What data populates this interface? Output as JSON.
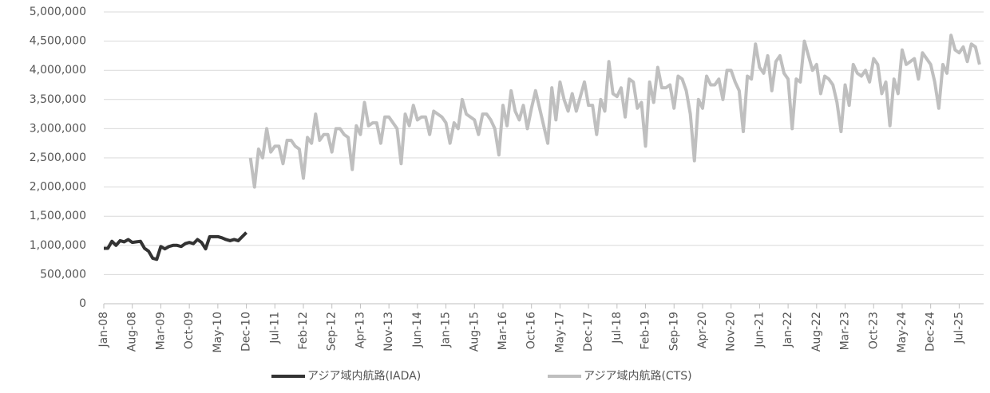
{
  "chart_data": {
    "type": "line",
    "categories": [
      "Jan-08",
      null,
      null,
      null,
      null,
      null,
      null,
      "Aug-08",
      null,
      null,
      null,
      null,
      null,
      null,
      "Mar-09",
      null,
      null,
      null,
      null,
      null,
      null,
      "Oct-09",
      null,
      null,
      null,
      null,
      null,
      null,
      "May-10",
      null,
      null,
      null,
      null,
      null,
      null,
      "Dec-10",
      null,
      null,
      null,
      null,
      null,
      null,
      "Jul-11",
      null,
      null,
      null,
      null,
      null,
      null,
      "Feb-12",
      null,
      null,
      null,
      null,
      null,
      null,
      "Sep-12",
      null,
      null,
      null,
      null,
      null,
      null,
      "Apr-13",
      null,
      null,
      null,
      null,
      null,
      null,
      "Nov-13",
      null,
      null,
      null,
      null,
      null,
      null,
      "Jun-14",
      null,
      null,
      null,
      null,
      null,
      null,
      "Jan-15",
      null,
      null,
      null,
      null,
      null,
      null,
      "Aug-15",
      null,
      null,
      null,
      null,
      null,
      null,
      "Mar-16",
      null,
      null,
      null,
      null,
      null,
      null,
      "Oct-16",
      null,
      null,
      null,
      null,
      null,
      null,
      "May-17",
      null,
      null,
      null,
      null,
      null,
      null,
      "Dec-17",
      null,
      null,
      null,
      null,
      null,
      null,
      "Jul-18",
      null,
      null,
      null,
      null,
      null,
      null,
      "Feb-19",
      null,
      null,
      null,
      null,
      null,
      null,
      "Sep-19",
      null,
      null,
      null,
      null,
      null,
      null,
      "Apr-20",
      null,
      null,
      null,
      null,
      null,
      null,
      "Nov-20",
      null,
      null,
      null,
      null,
      null,
      null,
      "Jun-21",
      null,
      null,
      null,
      null,
      null,
      null,
      "Jan-22",
      null,
      null,
      null,
      null,
      null,
      null,
      "Aug-22",
      null,
      null,
      null,
      null,
      null,
      null,
      "Mar-23",
      null,
      null,
      null,
      null,
      null,
      null,
      "Oct-23",
      null,
      null,
      null,
      null,
      null,
      null,
      "May-24",
      null,
      null,
      null,
      null,
      null,
      null,
      "Dec-24",
      null,
      null,
      null,
      null,
      null,
      null,
      "Jul-25",
      null,
      null,
      null,
      null,
      null
    ],
    "series": [
      {
        "name": "アジア域内航路(IADA)",
        "color": "#333333",
        "values": [
          950000,
          950000,
          1070000,
          1000000,
          1080000,
          1060000,
          1100000,
          1050000,
          1060000,
          1070000,
          950000,
          900000,
          780000,
          760000,
          980000,
          940000,
          980000,
          1000000,
          1000000,
          980000,
          1030000,
          1050000,
          1030000,
          1100000,
          1050000,
          940000,
          1150000,
          1150000,
          1150000,
          1130000,
          1100000,
          1080000,
          1100000,
          1080000,
          1150000,
          1220000,
          null,
          null,
          null,
          null,
          null,
          null,
          null,
          null,
          null,
          null,
          null,
          null,
          null,
          null,
          null,
          null,
          null,
          null,
          null,
          null,
          null,
          null,
          null,
          null,
          null,
          null,
          null,
          null,
          null,
          null,
          null,
          null,
          null,
          null,
          null,
          null,
          null,
          null,
          null,
          null,
          null,
          null,
          null,
          null,
          null,
          null,
          null,
          null,
          null,
          null,
          null,
          null,
          null,
          null,
          null,
          null,
          null,
          null,
          null,
          null,
          null,
          null,
          null,
          null,
          null,
          null,
          null,
          null,
          null,
          null,
          null,
          null,
          null,
          null,
          null,
          null,
          null,
          null,
          null,
          null,
          null,
          null,
          null,
          null,
          null,
          null,
          null,
          null,
          null,
          null,
          null,
          null,
          null,
          null,
          null,
          null,
          null,
          null,
          null,
          null,
          null,
          null,
          null,
          null,
          null,
          null,
          null,
          null,
          null,
          null,
          null,
          null,
          null,
          null,
          null,
          null,
          null,
          null,
          null,
          null,
          null,
          null,
          null,
          null,
          null,
          null,
          null,
          null,
          null,
          null,
          null,
          null,
          null,
          null,
          null,
          null,
          null,
          null,
          null,
          null,
          null,
          null,
          null,
          null,
          null,
          null,
          null,
          null,
          null,
          null,
          null,
          null,
          null,
          null,
          null,
          null,
          null,
          null,
          null,
          null,
          null,
          null,
          null,
          null,
          null,
          null,
          null,
          null,
          null,
          null,
          null,
          null,
          null,
          null,
          null,
          null,
          null,
          null,
          null,
          null
        ]
      },
      {
        "name": "アジア域内航路(CTS)",
        "color": "#bfbfbf",
        "values": [
          null,
          null,
          null,
          null,
          null,
          null,
          null,
          null,
          null,
          null,
          null,
          null,
          null,
          null,
          null,
          null,
          null,
          null,
          null,
          null,
          null,
          null,
          null,
          null,
          null,
          null,
          null,
          null,
          null,
          null,
          null,
          null,
          null,
          null,
          null,
          null,
          2500000,
          2000000,
          2650000,
          2500000,
          3000000,
          2600000,
          2700000,
          2700000,
          2400000,
          2800000,
          2800000,
          2700000,
          2650000,
          2150000,
          2850000,
          2750000,
          3250000,
          2800000,
          2900000,
          2900000,
          2600000,
          3000000,
          3000000,
          2900000,
          2850000,
          2300000,
          3050000,
          2900000,
          3450000,
          3050000,
          3100000,
          3100000,
          2750000,
          3200000,
          3200000,
          3100000,
          3000000,
          2400000,
          3250000,
          3050000,
          3400000,
          3150000,
          3200000,
          3200000,
          2900000,
          3300000,
          3250000,
          3200000,
          3100000,
          2750000,
          3100000,
          3000000,
          3500000,
          3250000,
          3200000,
          3150000,
          2900000,
          3250000,
          3250000,
          3150000,
          3000000,
          2550000,
          3400000,
          3050000,
          3650000,
          3300000,
          3150000,
          3400000,
          3000000,
          3350000,
          3650000,
          3350000,
          3050000,
          2750000,
          3700000,
          3150000,
          3800000,
          3500000,
          3300000,
          3600000,
          3300000,
          3550000,
          3800000,
          3400000,
          3400000,
          2900000,
          3500000,
          3300000,
          4150000,
          3600000,
          3550000,
          3700000,
          3200000,
          3850000,
          3800000,
          3350000,
          3450000,
          2700000,
          3800000,
          3450000,
          4050000,
          3700000,
          3700000,
          3750000,
          3350000,
          3900000,
          3850000,
          3650000,
          3250000,
          2450000,
          3500000,
          3350000,
          3900000,
          3750000,
          3750000,
          3850000,
          3500000,
          4000000,
          4000000,
          3800000,
          3650000,
          2950000,
          3900000,
          3850000,
          4450000,
          4050000,
          3950000,
          4250000,
          3650000,
          4150000,
          4250000,
          3950000,
          3850000,
          3000000,
          3850000,
          3800000,
          4500000,
          4250000,
          4000000,
          4100000,
          3600000,
          3900000,
          3850000,
          3750000,
          3450000,
          2950000,
          3750000,
          3400000,
          4100000,
          3950000,
          3900000,
          4000000,
          3800000,
          4200000,
          4100000,
          3600000,
          3800000,
          3050000,
          3850000,
          3600000,
          4350000,
          4100000,
          4150000,
          4200000,
          3850000,
          4300000,
          4200000,
          4100000,
          3800000,
          3350000,
          4100000,
          3950000,
          4600000,
          4350000,
          4300000,
          4400000,
          4150000,
          4450000,
          4400000,
          4100000
        ]
      }
    ],
    "ylim": [
      0,
      5000000
    ],
    "yticks": [
      0,
      {
        "value": 500000,
        "label": "500,000"
      },
      {
        "value": 1000000,
        "label": "1,000,000"
      },
      {
        "value": 1500000,
        "label": "1,500,000"
      },
      {
        "value": 2000000,
        "label": "2,000,000"
      },
      {
        "value": 2500000,
        "label": "2,500,000"
      },
      {
        "value": 3000000,
        "label": "3,000,000"
      },
      {
        "value": 3500000,
        "label": "3,500,000"
      },
      {
        "value": 4000000,
        "label": "4,000,000"
      },
      {
        "value": 4500000,
        "label": "4,500,000"
      },
      {
        "value": 5000000,
        "label": "5,000,000"
      }
    ],
    "grid": true,
    "legend": "bottom"
  }
}
